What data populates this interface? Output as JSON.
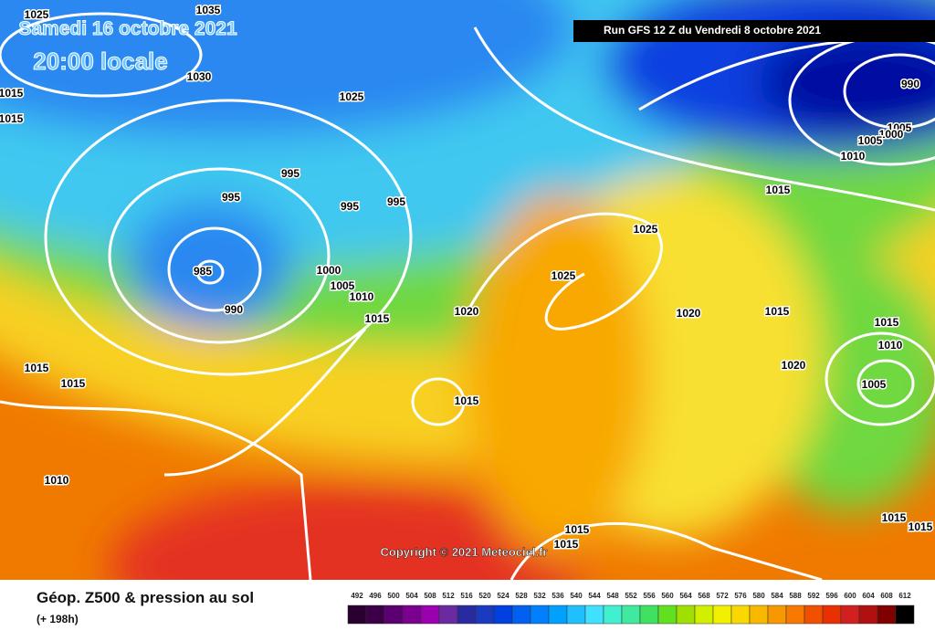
{
  "map": {
    "date": "Samedi 16 octobre 2021",
    "time": "20:00 locale",
    "run": "Run GFS 12 Z du Vendredi 8 octobre 2021",
    "copyright": "Copyright © 2021 Meteociel.fr",
    "isobar_labels": [
      "1025",
      "1035",
      "1030",
      "1015",
      "1015",
      "1025",
      "995",
      "995",
      "995",
      "995",
      "985",
      "990",
      "1000",
      "1005",
      "1010",
      "1015",
      "1020",
      "1025",
      "1025",
      "1015",
      "990",
      "1005",
      "1000",
      "1005",
      "1010",
      "1020",
      "1015",
      "1020",
      "1015",
      "1010",
      "1005",
      "1015",
      "1015",
      "1015",
      "1010",
      "1015",
      "1015",
      "1015",
      "1015"
    ]
  },
  "footer": {
    "title": "Géop. Z500 & pression au sol",
    "subtitle": "(+ 198h)",
    "scale": {
      "ticks": [
        492,
        496,
        500,
        504,
        508,
        512,
        516,
        520,
        524,
        528,
        532,
        536,
        540,
        544,
        548,
        552,
        556,
        560,
        564,
        568,
        572,
        576,
        580,
        584,
        588,
        592,
        596,
        600,
        604,
        608,
        612
      ],
      "colors": [
        "#2a0030",
        "#3b0048",
        "#5a0070",
        "#7a0090",
        "#9a00b0",
        "#6a2aa0",
        "#2a2aa0",
        "#1a3ac0",
        "#0040e0",
        "#0060f0",
        "#0080ff",
        "#00a0ff",
        "#20c0ff",
        "#40e0ff",
        "#40f0d0",
        "#40e8a0",
        "#40e060",
        "#60e020",
        "#a0e000",
        "#d0f000",
        "#f0f000",
        "#f8d800",
        "#f8b800",
        "#f89800",
        "#f87800",
        "#f05000",
        "#e83000",
        "#d02020",
        "#b01010",
        "#800000",
        "#000000"
      ]
    }
  }
}
